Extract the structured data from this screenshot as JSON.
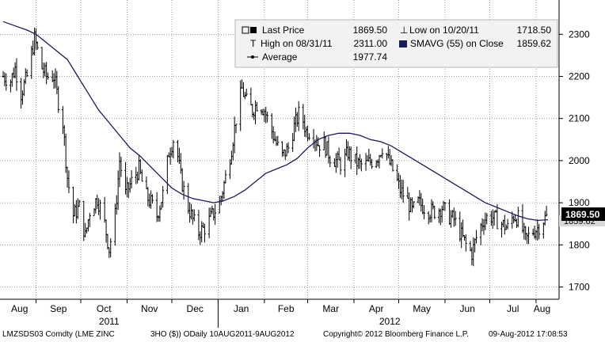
{
  "colors": {
    "price_bars": "#000000",
    "sma_line": "#1a1a5e",
    "grid": "#8a8a8a",
    "frame": "#000000",
    "price_tag_bg": "#000000",
    "price_tag_text": "#ffffff",
    "legend_bg": "#f2f2f2"
  },
  "legend": {
    "last_price_label": "Last Price",
    "last_price_value": "1869.50",
    "high_label": "High on 08/31/11",
    "high_value": "2311.00",
    "average_label": "Average",
    "average_value": "1977.74",
    "low_label": "Low on 10/20/11",
    "low_value": "1718.50",
    "sma_label": "SMAVG (55) on Close",
    "sma_value": "1859.62"
  },
  "price_tag": {
    "value": "1869.50",
    "behind_value": "1859.62"
  },
  "footer": {
    "ticker": "LMZSDS03 Comdty (LME ZINC",
    "period": "3HO ($)) ODaily 10AUG2011-9AUG2012",
    "copyright": "Copyright© 2012 Bloomberg Finance L.P.",
    "timestamp": "09-Aug-2012 17:08:53"
  },
  "chart_data": {
    "type": "line",
    "title": "",
    "xlabel": "",
    "ylabel": "",
    "x_range": [
      "2011-08-10",
      "2012-08-09"
    ],
    "ylim": [
      1650,
      2400
    ],
    "y_ticks": [
      1700,
      1800,
      1900,
      2000,
      2100,
      2200,
      2300
    ],
    "y_axis_side": "right",
    "grid": true,
    "legend_position": "top-right",
    "x_month_labels": [
      "Aug",
      "Sep",
      "Oct",
      "Nov",
      "Dec",
      "Jan",
      "Feb",
      "Mar",
      "Apr",
      "May",
      "Jun",
      "Jul",
      "Aug"
    ],
    "x_year_labels": [
      "2011",
      "2012"
    ],
    "series": [
      {
        "name": "Last Price",
        "style": "ohlc-bars",
        "points": [
          [
            "2011-08-10",
            2200
          ],
          [
            "2011-08-15",
            2190
          ],
          [
            "2011-08-18",
            2220
          ],
          [
            "2011-08-22",
            2160
          ],
          [
            "2011-08-26",
            2200
          ],
          [
            "2011-08-31",
            2290
          ],
          [
            "2011-09-05",
            2220
          ],
          [
            "2011-09-08",
            2200
          ],
          [
            "2011-09-13",
            2200
          ],
          [
            "2011-09-16",
            2140
          ],
          [
            "2011-09-19",
            2090
          ],
          [
            "2011-09-22",
            1960
          ],
          [
            "2011-09-26",
            1870
          ],
          [
            "2011-09-30",
            1890
          ],
          [
            "2011-10-04",
            1820
          ],
          [
            "2011-10-07",
            1880
          ],
          [
            "2011-10-12",
            1910
          ],
          [
            "2011-10-16",
            1870
          ],
          [
            "2011-10-20",
            1790
          ],
          [
            "2011-10-24",
            1870
          ],
          [
            "2011-10-27",
            2000
          ],
          [
            "2011-10-31",
            1920
          ],
          [
            "2011-11-04",
            1950
          ],
          [
            "2011-11-09",
            1980
          ],
          [
            "2011-11-13",
            1920
          ],
          [
            "2011-11-17",
            1900
          ],
          [
            "2011-11-21",
            1870
          ],
          [
            "2011-11-25",
            1920
          ],
          [
            "2011-11-29",
            2020
          ],
          [
            "2011-12-03",
            2060
          ],
          [
            "2011-12-07",
            1960
          ],
          [
            "2011-12-11",
            1900
          ],
          [
            "2011-12-15",
            1860
          ],
          [
            "2011-12-19",
            1830
          ],
          [
            "2011-12-23",
            1840
          ],
          [
            "2011-12-28",
            1870
          ],
          [
            "2012-01-02",
            1900
          ],
          [
            "2012-01-06",
            1960
          ],
          [
            "2012-01-10",
            2030
          ],
          [
            "2012-01-13",
            2100
          ],
          [
            "2012-01-17",
            2170
          ],
          [
            "2012-01-20",
            2140
          ],
          [
            "2012-01-24",
            2120
          ],
          [
            "2012-01-28",
            2140
          ],
          [
            "2012-02-01",
            2120
          ],
          [
            "2012-02-05",
            2080
          ],
          [
            "2012-02-09",
            2040
          ],
          [
            "2012-02-13",
            2010
          ],
          [
            "2012-02-17",
            2030
          ],
          [
            "2012-02-21",
            2080
          ],
          [
            "2012-02-25",
            2120
          ],
          [
            "2012-02-29",
            2070
          ],
          [
            "2012-03-04",
            2070
          ],
          [
            "2012-03-08",
            2040
          ],
          [
            "2012-03-12",
            2040
          ],
          [
            "2012-03-16",
            2010
          ],
          [
            "2012-03-20",
            2000
          ],
          [
            "2012-03-24",
            1990
          ],
          [
            "2012-03-28",
            2020
          ],
          [
            "2012-04-01",
            2000
          ],
          [
            "2012-04-05",
            1990
          ],
          [
            "2012-04-09",
            1990
          ],
          [
            "2012-04-13",
            2000
          ],
          [
            "2012-04-17",
            2010
          ],
          [
            "2012-04-21",
            2040
          ],
          [
            "2012-04-24",
            2000
          ],
          [
            "2012-04-28",
            1970
          ],
          [
            "2012-05-02",
            1930
          ],
          [
            "2012-05-06",
            1910
          ],
          [
            "2012-05-10",
            1880
          ],
          [
            "2012-05-14",
            1900
          ],
          [
            "2012-05-18",
            1890
          ],
          [
            "2012-05-22",
            1880
          ],
          [
            "2012-05-26",
            1880
          ],
          [
            "2012-05-30",
            1890
          ],
          [
            "2012-06-03",
            1870
          ],
          [
            "2012-06-07",
            1860
          ],
          [
            "2012-06-11",
            1830
          ],
          [
            "2012-06-15",
            1800
          ],
          [
            "2012-06-19",
            1780
          ],
          [
            "2012-06-23",
            1830
          ],
          [
            "2012-06-27",
            1860
          ],
          [
            "2012-07-01",
            1870
          ],
          [
            "2012-07-05",
            1860
          ],
          [
            "2012-07-09",
            1850
          ],
          [
            "2012-07-13",
            1840
          ],
          [
            "2012-07-17",
            1870
          ],
          [
            "2012-07-21",
            1860
          ],
          [
            "2012-07-25",
            1810
          ],
          [
            "2012-07-29",
            1830
          ],
          [
            "2012-08-02",
            1840
          ],
          [
            "2012-08-06",
            1860
          ],
          [
            "2012-08-09",
            1869.5
          ]
        ]
      },
      {
        "name": "SMAVG (55) on Close",
        "style": "line",
        "points": [
          [
            "2011-08-10",
            2330
          ],
          [
            "2011-08-18",
            2320
          ],
          [
            "2011-08-26",
            2310
          ],
          [
            "2011-09-01",
            2300
          ],
          [
            "2011-09-08",
            2280
          ],
          [
            "2011-09-15",
            2260
          ],
          [
            "2011-09-22",
            2240
          ],
          [
            "2011-09-29",
            2200
          ],
          [
            "2011-10-06",
            2160
          ],
          [
            "2011-10-13",
            2120
          ],
          [
            "2011-10-20",
            2090
          ],
          [
            "2011-10-27",
            2060
          ],
          [
            "2011-11-03",
            2030
          ],
          [
            "2011-11-10",
            2010
          ],
          [
            "2011-11-17",
            1985
          ],
          [
            "2011-11-24",
            1960
          ],
          [
            "2011-12-01",
            1935
          ],
          [
            "2011-12-08",
            1920
          ],
          [
            "2011-12-15",
            1910
          ],
          [
            "2011-12-22",
            1905
          ],
          [
            "2011-12-29",
            1900
          ],
          [
            "2012-01-05",
            1905
          ],
          [
            "2012-01-12",
            1915
          ],
          [
            "2012-01-19",
            1930
          ],
          [
            "2012-01-26",
            1950
          ],
          [
            "2012-02-02",
            1970
          ],
          [
            "2012-02-09",
            1980
          ],
          [
            "2012-02-16",
            1990
          ],
          [
            "2012-02-23",
            2005
          ],
          [
            "2012-03-01",
            2030
          ],
          [
            "2012-03-08",
            2050
          ],
          [
            "2012-03-15",
            2060
          ],
          [
            "2012-03-22",
            2065
          ],
          [
            "2012-03-29",
            2065
          ],
          [
            "2012-04-05",
            2060
          ],
          [
            "2012-04-12",
            2050
          ],
          [
            "2012-04-19",
            2045
          ],
          [
            "2012-04-26",
            2035
          ],
          [
            "2012-05-03",
            2020
          ],
          [
            "2012-05-10",
            2005
          ],
          [
            "2012-05-17",
            1990
          ],
          [
            "2012-05-24",
            1975
          ],
          [
            "2012-05-31",
            1960
          ],
          [
            "2012-06-07",
            1945
          ],
          [
            "2012-06-14",
            1930
          ],
          [
            "2012-06-21",
            1915
          ],
          [
            "2012-06-28",
            1900
          ],
          [
            "2012-07-05",
            1890
          ],
          [
            "2012-07-12",
            1880
          ],
          [
            "2012-07-19",
            1870
          ],
          [
            "2012-07-26",
            1862
          ],
          [
            "2012-08-02",
            1858
          ],
          [
            "2012-08-09",
            1859.62
          ]
        ]
      }
    ]
  }
}
